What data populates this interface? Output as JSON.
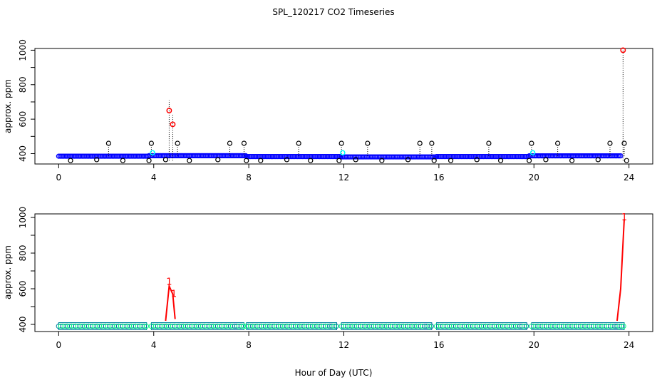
{
  "chart_data": [
    {
      "id": "top",
      "type": "scatter",
      "title": "SPL_120217  CO2 Timeseries",
      "ylabel": "approx. ppm",
      "xlabel": "",
      "xlim": [
        -1,
        25
      ],
      "ylim": [
        340,
        1010
      ],
      "x_ticks": [
        0,
        4,
        8,
        12,
        16,
        20,
        24
      ],
      "y_ticks": [
        400,
        600,
        800,
        1000
      ],
      "colors": {
        "baseline": "#0000ff",
        "spike": "#000000",
        "high": "#ff0000",
        "cyan": "#00ffff"
      },
      "baseline_segments": [
        {
          "x_start": 0.0,
          "x_end": 3.8,
          "y": 385
        },
        {
          "x_start": 3.8,
          "x_end": 7.9,
          "y": 388
        },
        {
          "x_start": 7.9,
          "x_end": 11.9,
          "y": 383
        },
        {
          "x_start": 11.9,
          "x_end": 15.9,
          "y": 381
        },
        {
          "x_start": 15.9,
          "x_end": 19.8,
          "y": 383
        },
        {
          "x_start": 19.8,
          "x_end": 23.7,
          "y": 387
        }
      ],
      "spikes_up": [
        {
          "x": 2.1,
          "y": 460
        },
        {
          "x": 3.9,
          "y": 460
        },
        {
          "x": 5.0,
          "y": 460
        },
        {
          "x": 7.2,
          "y": 460
        },
        {
          "x": 7.8,
          "y": 460
        },
        {
          "x": 10.1,
          "y": 460
        },
        {
          "x": 11.9,
          "y": 460
        },
        {
          "x": 13.0,
          "y": 460
        },
        {
          "x": 15.2,
          "y": 460
        },
        {
          "x": 15.7,
          "y": 460
        },
        {
          "x": 18.1,
          "y": 460
        },
        {
          "x": 19.9,
          "y": 460
        },
        {
          "x": 21.0,
          "y": 460
        },
        {
          "x": 23.2,
          "y": 460
        },
        {
          "x": 23.8,
          "y": 460
        }
      ],
      "spikes_down": [
        {
          "x": 0.5,
          "y": 360
        },
        {
          "x": 1.6,
          "y": 365
        },
        {
          "x": 2.7,
          "y": 360
        },
        {
          "x": 3.8,
          "y": 360
        },
        {
          "x": 4.5,
          "y": 365
        },
        {
          "x": 5.5,
          "y": 360
        },
        {
          "x": 6.7,
          "y": 365
        },
        {
          "x": 7.9,
          "y": 360
        },
        {
          "x": 8.5,
          "y": 360
        },
        {
          "x": 9.6,
          "y": 365
        },
        {
          "x": 10.6,
          "y": 360
        },
        {
          "x": 11.8,
          "y": 360
        },
        {
          "x": 12.5,
          "y": 365
        },
        {
          "x": 13.6,
          "y": 360
        },
        {
          "x": 14.7,
          "y": 365
        },
        {
          "x": 15.8,
          "y": 360
        },
        {
          "x": 16.5,
          "y": 360
        },
        {
          "x": 17.6,
          "y": 365
        },
        {
          "x": 18.6,
          "y": 360
        },
        {
          "x": 19.8,
          "y": 360
        },
        {
          "x": 20.5,
          "y": 365
        },
        {
          "x": 21.6,
          "y": 360
        },
        {
          "x": 22.7,
          "y": 365
        },
        {
          "x": 23.9,
          "y": 360
        }
      ],
      "high_points": [
        {
          "x": 4.65,
          "y": 650
        },
        {
          "x": 4.8,
          "y": 570
        },
        {
          "x": 23.75,
          "y": 1000
        }
      ],
      "cyan_points": [
        {
          "x": 3.95,
          "y": 405
        },
        {
          "x": 11.95,
          "y": 405
        },
        {
          "x": 19.95,
          "y": 405
        }
      ]
    },
    {
      "id": "bottom",
      "type": "scatter",
      "title": "",
      "ylabel": "approx. ppm",
      "xlabel": "Hour of Day (UTC)",
      "xlim": [
        -1,
        25
      ],
      "ylim": [
        360,
        1020
      ],
      "x_ticks": [
        0,
        4,
        8,
        12,
        16,
        20,
        24
      ],
      "y_ticks": [
        400,
        600,
        800,
        1000
      ],
      "colors": {
        "band": "#0080a0",
        "band_light": "#00ff80",
        "spike": "#ff0000"
      },
      "bands": [
        {
          "x_start": 0.0,
          "x_end": 3.7,
          "y": 390
        },
        {
          "x_start": 3.9,
          "x_end": 7.8,
          "y": 390
        },
        {
          "x_start": 7.9,
          "x_end": 11.7,
          "y": 390
        },
        {
          "x_start": 11.9,
          "x_end": 15.7,
          "y": 390
        },
        {
          "x_start": 15.9,
          "x_end": 19.7,
          "y": 390
        },
        {
          "x_start": 19.9,
          "x_end": 23.8,
          "y": 390
        }
      ],
      "spike_lines": [
        [
          {
            "x": 4.5,
            "y": 420
          },
          {
            "x": 4.65,
            "y": 615
          },
          {
            "x": 4.8,
            "y": 570
          },
          {
            "x": 4.9,
            "y": 430
          }
        ],
        [
          {
            "x": 23.5,
            "y": 420
          },
          {
            "x": 23.65,
            "y": 600
          },
          {
            "x": 23.8,
            "y": 990
          }
        ]
      ],
      "labels": [
        {
          "x": 4.65,
          "y": 622,
          "text": "1"
        },
        {
          "x": 4.85,
          "y": 555,
          "text": "1"
        },
        {
          "x": 23.8,
          "y": 985,
          "text": "1"
        }
      ]
    }
  ]
}
